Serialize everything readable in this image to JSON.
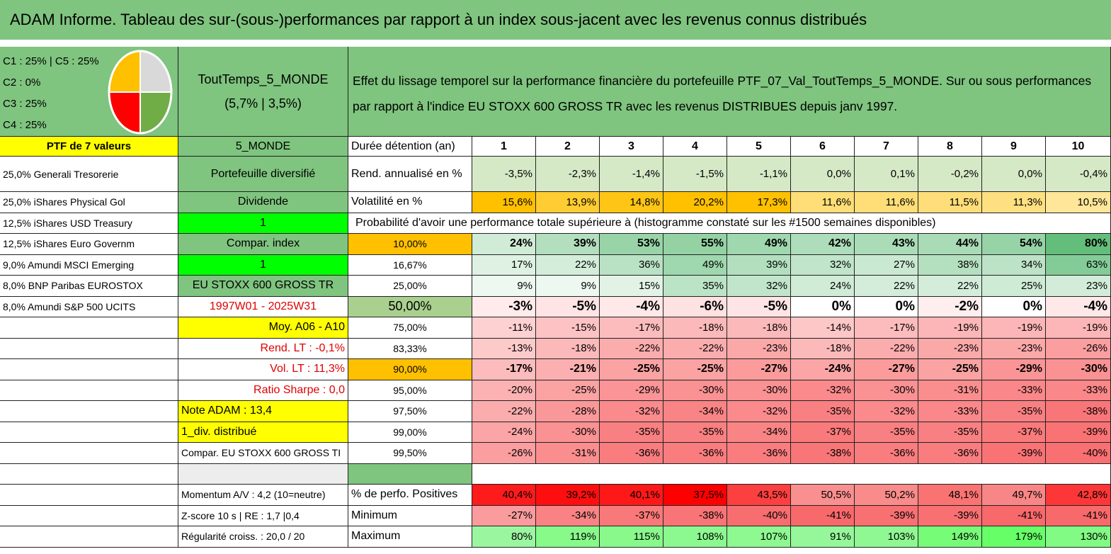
{
  "header": {
    "title": "ADAM Informe. Tableau des sur-(sous-)performances par rapport à un index sous-jacent avec les revenus connus distribués"
  },
  "pie": {
    "legend": [
      "C1 : 25% | C5 : 25%",
      "C2 : 0%",
      "C3 : 25%",
      "C4 : 25%"
    ],
    "slices": [
      {
        "value": 25,
        "color": "#d9d9d9"
      },
      {
        "value": 25,
        "color": "#70ad47"
      },
      {
        "value": 25,
        "color": "#ff0000"
      },
      {
        "value": 25,
        "color": "#ffc000"
      }
    ]
  },
  "fund": {
    "name": "ToutTemps_5_MONDE",
    "perf": "(5,7% | 3,5%)"
  },
  "description": "Effet du lissage temporel sur la performance financière du portefeuille PTF_07_Val_ToutTemps_5_MONDE. Sur ou sous performances par rapport à l'indice EU STOXX 600 GROSS TR avec les revenus DISTRIBUES depuis janv 1997.",
  "rows": [
    {
      "a": "PTF de 7 valeurs",
      "a_fill": "#ffff00",
      "b": "5_MONDE",
      "b_fill": "#7fc47f",
      "c": "Durée détention (an)",
      "heat": "header",
      "values": [
        "1",
        "2",
        "3",
        "4",
        "5",
        "6",
        "7",
        "8",
        "9",
        "10"
      ]
    },
    {
      "a": "25,0% Generali Tresorerie",
      "b": "Portefeuille diversifié",
      "b_fill": "#7fc47f",
      "c": "Rend. annualisé en %",
      "heat": "pale-green",
      "values": [
        "-3,5%",
        "-2,3%",
        "-1,4%",
        "-1,5%",
        "-1,1%",
        "0,0%",
        "0,1%",
        "-0,2%",
        "0,0%",
        "-0,4%"
      ]
    },
    {
      "a": "25,0% iShares Physical Gol",
      "b": "Dividende",
      "b_fill": "#7fc47f",
      "c": "Volatilité en %",
      "heat": "volatility",
      "values": [
        "15,6%",
        "13,9%",
        "14,8%",
        "20,2%",
        "17,3%",
        "11,6%",
        "11,6%",
        "11,5%",
        "11,3%",
        "10,5%"
      ]
    },
    {
      "a": "12,5% iShares USD Treasury",
      "b": "1",
      "b_fill": "#00ff00",
      "span": "Probabilité d'avoir une performance totale supérieure à (histogramme constaté sur les #1500 semaines disponibles)"
    },
    {
      "a": "12,5% iShares Euro Governm",
      "b": "Compar. index",
      "b_fill": "#7fc47f",
      "c": "10,00%",
      "c_fill": "#ffc000",
      "heat": "prob",
      "bold": true,
      "values": [
        "24%",
        "39%",
        "53%",
        "55%",
        "49%",
        "42%",
        "43%",
        "44%",
        "54%",
        "80%"
      ]
    },
    {
      "a": "9,0% Amundi MSCI Emerging",
      "b": "1",
      "b_fill": "#00ff00",
      "c": "16,67%",
      "heat": "prob",
      "values": [
        "17%",
        "22%",
        "36%",
        "49%",
        "39%",
        "32%",
        "27%",
        "38%",
        "34%",
        "63%"
      ]
    },
    {
      "a": "8,0% BNP Paribas EUROSTOX",
      "b": "EU STOXX 600 GROSS TR",
      "b_fill": "#7fc47f",
      "c": "25,00%",
      "heat": "prob",
      "values": [
        "9%",
        "9%",
        "15%",
        "35%",
        "32%",
        "24%",
        "22%",
        "22%",
        "25%",
        "23%"
      ]
    },
    {
      "a": "8,0% Amundi S&P 500 UCITS",
      "b": "1997W01 - 2025W31",
      "b_color": "#e00000",
      "c": "50,00%",
      "c_fill": "#a9d08e",
      "heat": "prob",
      "big": true,
      "values": [
        "-3%",
        "-5%",
        "-4%",
        "-6%",
        "-5%",
        "0%",
        "0%",
        "-2%",
        "0%",
        "-4%"
      ]
    },
    {
      "b": "Moy. A06 - A10",
      "b_fill": "#ffff00",
      "b_align": "right",
      "c": "75,00%",
      "heat": "prob",
      "values": [
        "-11%",
        "-15%",
        "-17%",
        "-18%",
        "-18%",
        "-14%",
        "-17%",
        "-19%",
        "-19%",
        "-19%"
      ]
    },
    {
      "b": "Rend. LT : -0,1%",
      "b_color": "#e00000",
      "b_align": "right",
      "c": "83,33%",
      "heat": "prob",
      "values": [
        "-13%",
        "-18%",
        "-22%",
        "-22%",
        "-23%",
        "-18%",
        "-22%",
        "-23%",
        "-23%",
        "-26%"
      ]
    },
    {
      "b": "Vol. LT : 11,3%",
      "b_color": "#e00000",
      "b_align": "right",
      "c": "90,00%",
      "c_fill": "#ffc000",
      "heat": "prob",
      "bold": true,
      "values": [
        "-17%",
        "-21%",
        "-25%",
        "-25%",
        "-27%",
        "-24%",
        "-27%",
        "-25%",
        "-29%",
        "-30%"
      ]
    },
    {
      "b": "Ratio Sharpe : 0,0",
      "b_color": "#e00000",
      "b_align": "right",
      "c": "95,00%",
      "heat": "prob",
      "values": [
        "-20%",
        "-25%",
        "-29%",
        "-30%",
        "-30%",
        "-32%",
        "-30%",
        "-31%",
        "-33%",
        "-33%"
      ]
    },
    {
      "b": "Note ADAM : 13,4",
      "b_fill": "#ffff00",
      "b_align": "left",
      "c": "97,50%",
      "heat": "prob",
      "values": [
        "-22%",
        "-28%",
        "-32%",
        "-34%",
        "-32%",
        "-35%",
        "-32%",
        "-33%",
        "-35%",
        "-38%"
      ]
    },
    {
      "b": "1_div. distribué",
      "b_fill": "#ffff00",
      "b_align": "left",
      "c": "99,00%",
      "heat": "prob",
      "values": [
        "-24%",
        "-30%",
        "-35%",
        "-35%",
        "-34%",
        "-37%",
        "-35%",
        "-35%",
        "-37%",
        "-39%"
      ]
    },
    {
      "b": "Compar. EU STOXX 600 GROSS TI",
      "b_align": "left",
      "c": "99,50%",
      "heat": "prob",
      "values": [
        "-26%",
        "-31%",
        "-36%",
        "-36%",
        "-36%",
        "-38%",
        "-36%",
        "-36%",
        "-39%",
        "-40%"
      ]
    },
    {
      "b_fill": "#ededed",
      "c_fill": "#7fc47f"
    },
    {
      "b": "Momentum A/V : 4,2 (10=neutre)",
      "b_align": "left",
      "c": "% de perfo. Positives",
      "heat": "positives",
      "values": [
        "40,4%",
        "39,2%",
        "40,1%",
        "37,5%",
        "43,5%",
        "50,5%",
        "50,2%",
        "48,1%",
        "49,7%",
        "42,8%"
      ]
    },
    {
      "b": "Z-score 10 s | RE : 1,7 |0,4",
      "b_align": "left",
      "c": "Minimum",
      "heat": "minimum",
      "values": [
        "-27%",
        "-34%",
        "-37%",
        "-38%",
        "-40%",
        "-41%",
        "-39%",
        "-39%",
        "-41%",
        "-41%"
      ]
    },
    {
      "b": "Régularité croiss. : 20,0 / 20",
      "b_align": "left",
      "c": "Maximum",
      "heat": "maximum",
      "values": [
        "80%",
        "119%",
        "115%",
        "108%",
        "107%",
        "91%",
        "103%",
        "149%",
        "179%",
        "130%"
      ]
    }
  ]
}
